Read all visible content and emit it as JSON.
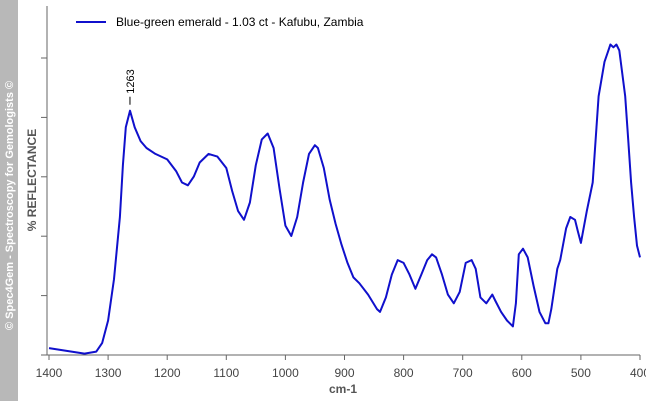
{
  "sidebar": {
    "copyright": "© Spec4Gem - Spectroscopy for Gemologists ©"
  },
  "colors": {
    "series": "#1010cc",
    "sidebar": "#b8b8b8",
    "axis": "#666666"
  },
  "chart_data": {
    "type": "line",
    "title": "",
    "xlabel": "cm-1",
    "ylabel": "% REFLECTANCE",
    "xlim": [
      1400,
      400
    ],
    "ylim": [
      0,
      100
    ],
    "x_reversed": true,
    "x_ticks": [
      1400,
      1300,
      1200,
      1100,
      1000,
      900,
      800,
      700,
      600,
      500,
      400
    ],
    "x_tick_labels": [
      "1400",
      "1300",
      "1200",
      "1100",
      "1000",
      "900",
      "800",
      "700",
      "600",
      "500",
      "400"
    ],
    "legend": {
      "position": "top-left"
    },
    "annotations": [
      {
        "x": 1263,
        "y": 70.8,
        "text": "1263"
      }
    ],
    "series": [
      {
        "name": "Blue-green emerald - 1.03 ct - Kafubu, Zambia",
        "x": [
          1400,
          1370,
          1340,
          1320,
          1310,
          1300,
          1290,
          1280,
          1275,
          1270,
          1263,
          1255,
          1245,
          1235,
          1220,
          1200,
          1185,
          1175,
          1165,
          1155,
          1145,
          1130,
          1115,
          1100,
          1090,
          1080,
          1070,
          1060,
          1050,
          1040,
          1030,
          1020,
          1010,
          1000,
          990,
          980,
          970,
          960,
          950,
          945,
          935,
          925,
          915,
          905,
          895,
          885,
          875,
          860,
          845,
          840,
          830,
          820,
          810,
          800,
          790,
          780,
          770,
          760,
          752,
          745,
          735,
          725,
          715,
          705,
          695,
          685,
          678,
          670,
          660,
          650,
          645,
          635,
          625,
          615,
          610,
          605,
          598,
          590,
          580,
          570,
          560,
          555,
          550,
          540,
          535,
          525,
          518,
          510,
          505,
          500,
          490,
          480,
          470,
          460,
          455,
          450,
          445,
          440,
          435,
          425,
          420,
          415,
          410,
          405,
          400
        ],
        "y": [
          2.0,
          1.2,
          0.4,
          1.0,
          3.5,
          10.0,
          22.0,
          40.0,
          55.0,
          66.0,
          70.8,
          66.0,
          62.0,
          60.0,
          58.3,
          56.7,
          53.3,
          50.0,
          49.2,
          51.7,
          55.8,
          58.3,
          57.5,
          54.2,
          47.5,
          41.7,
          39.2,
          44.2,
          55.0,
          62.5,
          64.2,
          60.0,
          48.3,
          37.5,
          34.5,
          40.0,
          50.0,
          58.3,
          60.8,
          60.0,
          54.2,
          45.0,
          38.0,
          32.0,
          26.7,
          22.5,
          20.8,
          17.5,
          13.3,
          12.5,
          16.7,
          23.3,
          27.5,
          26.7,
          23.3,
          19.2,
          23.3,
          27.5,
          29.2,
          28.3,
          23.3,
          17.5,
          15.0,
          18.3,
          26.7,
          27.5,
          25.0,
          16.7,
          15.0,
          17.5,
          15.8,
          12.5,
          10.0,
          8.3,
          15.0,
          29.2,
          30.8,
          28.3,
          20.0,
          12.5,
          9.2,
          9.2,
          13.3,
          25.0,
          27.5,
          36.7,
          40.0,
          39.2,
          35.8,
          32.5,
          41.7,
          50.0,
          75.0,
          85.0,
          87.5,
          90.0,
          89.2,
          90.0,
          88.3,
          75.0,
          62.5,
          50.0,
          40.0,
          31.7,
          28.3
        ]
      }
    ]
  }
}
